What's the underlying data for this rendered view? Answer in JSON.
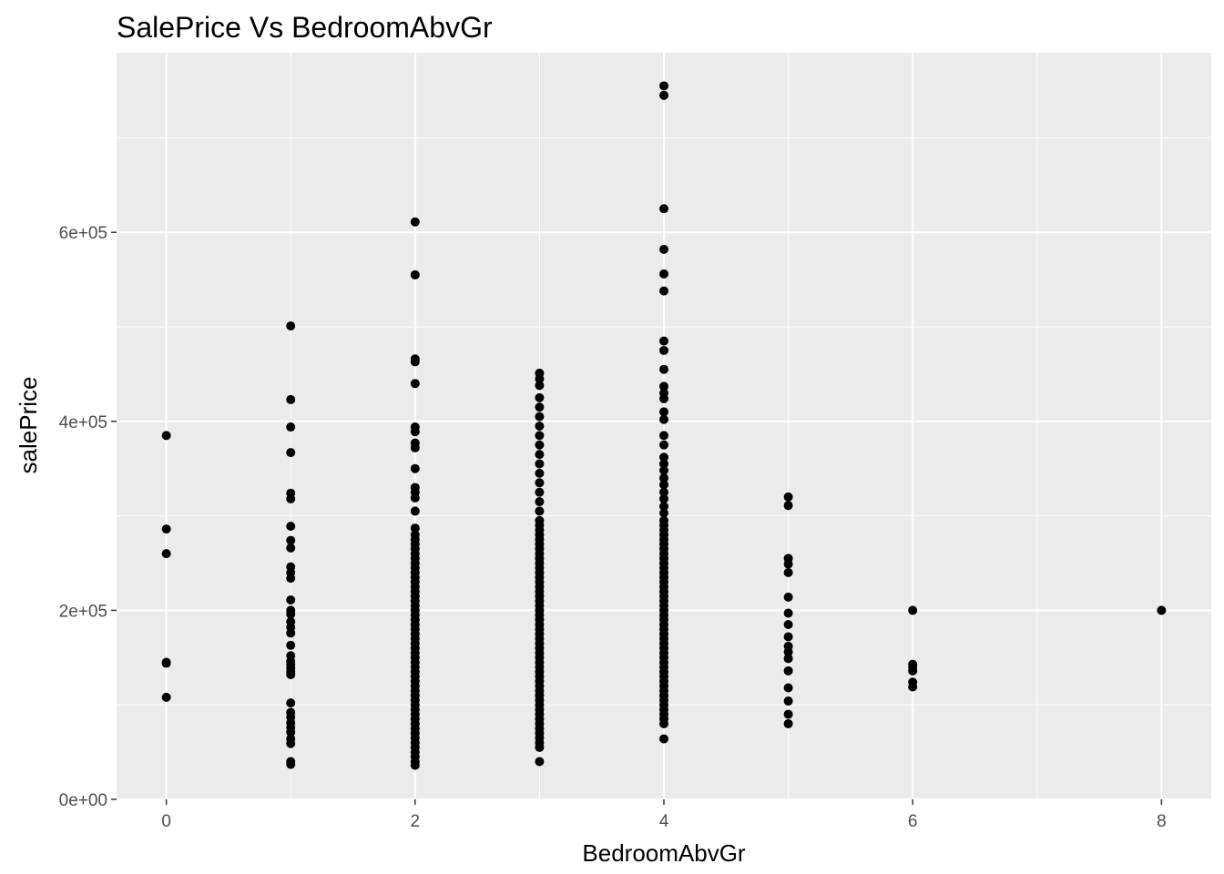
{
  "chart_data": {
    "type": "scatter",
    "title": "SalePrice Vs BedroomAbvGr",
    "xlabel": "BedroomAbvGr",
    "ylabel": "salePrice",
    "xlim": [
      -0.4,
      8.4
    ],
    "ylim": [
      0,
      790000
    ],
    "x_ticks": [
      0,
      2,
      4,
      6,
      8
    ],
    "x_tick_labels": [
      "0",
      "2",
      "4",
      "6",
      "8"
    ],
    "x_minor": [
      1,
      3,
      5,
      7
    ],
    "y_ticks": [
      0,
      200000,
      400000,
      600000
    ],
    "y_tick_labels": [
      "0e+00",
      "2e+05",
      "4e+05",
      "6e+05"
    ],
    "y_minor": [
      100000,
      300000,
      500000,
      700000
    ],
    "grid": true,
    "legend": "none",
    "colors": {
      "panel": "#ebebeb",
      "grid": "#ffffff",
      "point": "#000000"
    },
    "points": [
      {
        "x": 0,
        "ys": [
          385000,
          286000,
          260000,
          145000,
          144000,
          108000
        ]
      },
      {
        "x": 1,
        "ys": [
          501000,
          423000,
          394000,
          367000,
          324000,
          318000,
          289000,
          274000,
          266000,
          246000,
          240000,
          234000,
          211000,
          200000,
          196000,
          188000,
          182000,
          176000,
          163000,
          152000,
          146000,
          143000,
          139000,
          135000,
          132000,
          102000,
          92000,
          87000,
          81000,
          76000,
          71000,
          64000,
          59000,
          40000,
          37000
        ]
      },
      {
        "x": 2,
        "ys": [
          611000,
          555000,
          466000,
          463000,
          440000,
          394000,
          389000,
          377000,
          372000,
          350000,
          330000,
          325000,
          319000,
          305000,
          287000,
          280000,
          275000,
          270000,
          265000,
          260000,
          255000,
          250000,
          245000,
          240000,
          235000,
          230000,
          225000,
          220000,
          215000,
          210000,
          205000,
          200000,
          195000,
          190000,
          185000,
          180000,
          175000,
          170000,
          165000,
          160000,
          155000,
          150000,
          145000,
          140000,
          135000,
          130000,
          125000,
          120000,
          115000,
          110000,
          105000,
          100000,
          95000,
          90000,
          85000,
          80000,
          75000,
          70000,
          65000,
          60000,
          55000,
          50000,
          45000,
          40000,
          36000
        ]
      },
      {
        "x": 3,
        "ys": [
          451000,
          445000,
          438000,
          425000,
          415000,
          405000,
          395000,
          385000,
          375000,
          365000,
          355000,
          345000,
          335000,
          325000,
          315000,
          305000,
          295000,
          290000,
          285000,
          280000,
          275000,
          270000,
          265000,
          260000,
          255000,
          250000,
          245000,
          240000,
          235000,
          230000,
          225000,
          220000,
          215000,
          210000,
          205000,
          200000,
          195000,
          190000,
          185000,
          180000,
          175000,
          170000,
          165000,
          160000,
          155000,
          150000,
          145000,
          140000,
          135000,
          130000,
          125000,
          120000,
          115000,
          110000,
          105000,
          100000,
          95000,
          90000,
          85000,
          80000,
          75000,
          70000,
          65000,
          60000,
          55000,
          40000
        ]
      },
      {
        "x": 4,
        "ys": [
          755000,
          745000,
          625000,
          582000,
          556000,
          538000,
          485000,
          475000,
          455000,
          437000,
          430000,
          424000,
          410000,
          402000,
          385000,
          375000,
          362000,
          355000,
          348000,
          340000,
          333000,
          325000,
          318000,
          310000,
          303000,
          295000,
          290000,
          285000,
          280000,
          275000,
          270000,
          265000,
          260000,
          255000,
          250000,
          245000,
          240000,
          235000,
          230000,
          225000,
          220000,
          215000,
          210000,
          205000,
          200000,
          195000,
          190000,
          185000,
          180000,
          175000,
          170000,
          165000,
          160000,
          155000,
          150000,
          145000,
          140000,
          135000,
          130000,
          125000,
          120000,
          115000,
          110000,
          105000,
          100000,
          95000,
          90000,
          85000,
          80000,
          64000
        ]
      },
      {
        "x": 5,
        "ys": [
          320000,
          311000,
          255000,
          249000,
          240000,
          214000,
          197000,
          185000,
          172000,
          162000,
          156000,
          149000,
          136000,
          118000,
          104000,
          90000,
          80000
        ]
      },
      {
        "x": 6,
        "ys": [
          200000,
          143000,
          140000,
          136000,
          124000,
          119000
        ]
      },
      {
        "x": 8,
        "ys": [
          200000
        ]
      }
    ]
  }
}
